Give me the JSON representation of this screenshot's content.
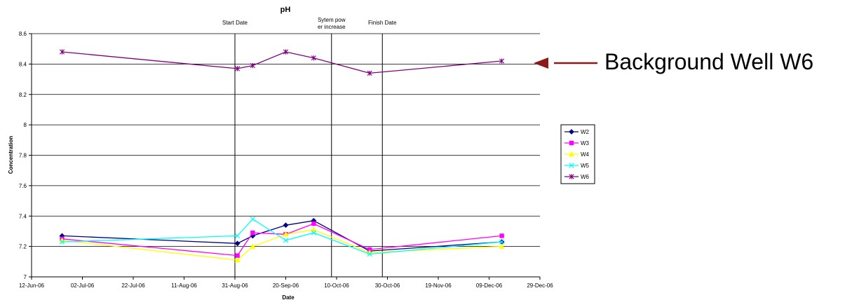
{
  "callout": {
    "text": "Background Well W6",
    "arrow_color": "#8B1A1A"
  },
  "chart_data": {
    "type": "line",
    "title": "pH",
    "xlabel": "Date",
    "ylabel": "Concentration",
    "ylim": [
      7,
      8.6
    ],
    "yticks": [
      7,
      7.2,
      7.4,
      7.6,
      7.8,
      8,
      8.2,
      8.4,
      8.6
    ],
    "ytick_labels": [
      "7",
      "7.2",
      "7.4",
      "7.6",
      "7.8",
      "8",
      "8.2",
      "8.4",
      "8.6"
    ],
    "xlim": [
      "2006-06-12",
      "2006-12-29"
    ],
    "xticks": [
      "2006-06-12",
      "2006-07-02",
      "2006-07-22",
      "2006-08-11",
      "2006-08-31",
      "2006-09-20",
      "2006-10-10",
      "2006-10-30",
      "2006-11-19",
      "2006-12-09",
      "2006-12-29"
    ],
    "xtick_labels": [
      "12-Jun-06",
      "02-Jul-06",
      "22-Jul-06",
      "11-Aug-06",
      "31-Aug-06",
      "20-Sep-06",
      "10-Oct-06",
      "30-Oct-06",
      "19-Nov-06",
      "09-Dec-06",
      "29-Dec-06"
    ],
    "grid": "horizontal",
    "legend_position": "right",
    "events": [
      {
        "date": "2006-08-31",
        "label": "Start Date"
      },
      {
        "date": "2006-10-08",
        "label": "Sytem pow er increase"
      },
      {
        "date": "2006-10-28",
        "label": "Finish Date"
      }
    ],
    "series": [
      {
        "name": "W2",
        "color": "#000080",
        "marker": "diamond",
        "x": [
          "2006-06-24",
          "2006-09-01",
          "2006-09-07",
          "2006-09-20",
          "2006-10-01",
          "2006-10-23",
          "2006-12-14"
        ],
        "y": [
          7.27,
          7.22,
          7.27,
          7.34,
          7.37,
          7.17,
          7.23
        ]
      },
      {
        "name": "W3",
        "color": "#FF00FF",
        "marker": "square",
        "x": [
          "2006-06-24",
          "2006-09-01",
          "2006-09-07",
          "2006-09-20",
          "2006-10-01",
          "2006-10-23",
          "2006-12-14"
        ],
        "y": [
          7.25,
          7.14,
          7.29,
          7.28,
          7.35,
          7.18,
          7.27
        ]
      },
      {
        "name": "W4",
        "color": "#FFFF00",
        "marker": "triangle",
        "x": [
          "2006-06-24",
          "2006-09-01",
          "2006-09-07",
          "2006-09-20",
          "2006-10-01",
          "2006-10-23",
          "2006-12-14"
        ],
        "y": [
          7.24,
          7.11,
          7.2,
          7.28,
          7.31,
          7.16,
          7.2
        ]
      },
      {
        "name": "W5",
        "color": "#00FFFF",
        "marker": "x",
        "x": [
          "2006-06-24",
          "2006-09-01",
          "2006-09-07",
          "2006-09-20",
          "2006-10-01",
          "2006-10-23",
          "2006-12-14"
        ],
        "y": [
          7.23,
          7.27,
          7.38,
          7.24,
          7.29,
          7.15,
          7.23
        ]
      },
      {
        "name": "W6",
        "color": "#800080",
        "marker": "star",
        "x": [
          "2006-06-24",
          "2006-09-01",
          "2006-09-07",
          "2006-09-20",
          "2006-10-01",
          "2006-10-23",
          "2006-12-14"
        ],
        "y": [
          8.48,
          8.37,
          8.39,
          8.48,
          8.44,
          8.34,
          8.42
        ]
      }
    ]
  }
}
